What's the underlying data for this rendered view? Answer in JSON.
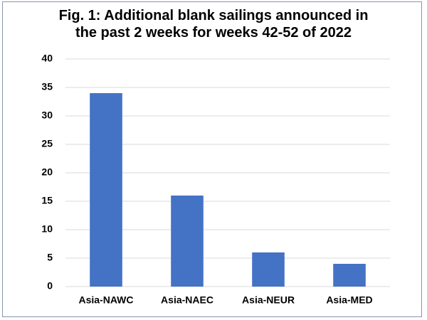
{
  "chart_data": {
    "type": "bar",
    "title": "Fig. 1: Additional blank sailings announced in the past 2 weeks for weeks 42-52 of 2022",
    "categories": [
      "Asia-NAWC",
      "Asia-NAEC",
      "Asia-NEUR",
      "Asia-MED"
    ],
    "values": [
      34,
      16,
      6,
      4
    ],
    "color": "#4472c4",
    "ylim": [
      0,
      40
    ],
    "yticks": [
      0,
      5,
      10,
      15,
      20,
      25,
      30,
      35,
      40
    ],
    "grid": true
  }
}
